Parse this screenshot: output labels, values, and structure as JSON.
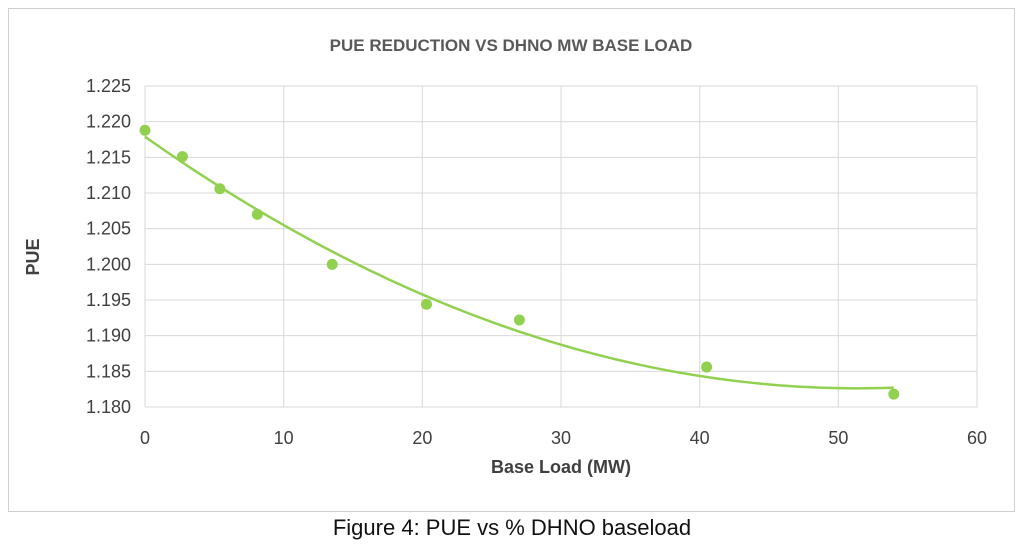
{
  "chart_data": {
    "type": "scatter",
    "title": "PUE REDUCTION VS DHNO MW BASE LOAD",
    "xlabel": "Base Load (MW)",
    "ylabel": "PUE",
    "xlim": [
      0,
      60
    ],
    "ylim": [
      1.18,
      1.225
    ],
    "x_ticks": [
      0,
      10,
      20,
      30,
      40,
      50,
      60
    ],
    "y_ticks": [
      "1.180",
      "1.185",
      "1.190",
      "1.195",
      "1.200",
      "1.205",
      "1.210",
      "1.215",
      "1.220",
      "1.225"
    ],
    "grid": true,
    "legend": "none",
    "points": [
      {
        "x": 0,
        "y": 1.2188
      },
      {
        "x": 2.7,
        "y": 1.2151
      },
      {
        "x": 5.4,
        "y": 1.2106
      },
      {
        "x": 8.1,
        "y": 1.207
      },
      {
        "x": 13.5,
        "y": 1.2
      },
      {
        "x": 20.3,
        "y": 1.1944
      },
      {
        "x": 27.0,
        "y": 1.1922
      },
      {
        "x": 40.5,
        "y": 1.1856
      },
      {
        "x": 54.0,
        "y": 1.1818
      }
    ],
    "trendline": {
      "type": "polynomial",
      "order": 2,
      "x_range": [
        0,
        54
      ]
    },
    "color": "#92d050"
  },
  "caption": "Figure 4: PUE vs % DHNO baseload"
}
